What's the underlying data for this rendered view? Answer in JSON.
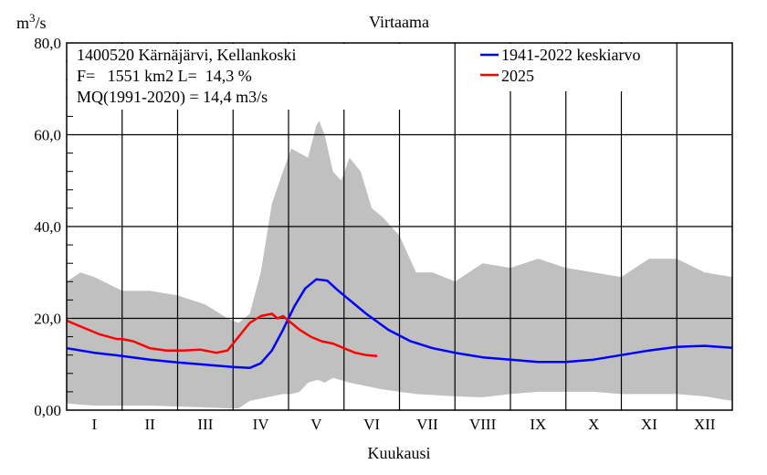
{
  "chart_data": {
    "type": "line",
    "title": "Virtaama",
    "ylabel_base": "m",
    "ylabel_sup": "3",
    "ylabel_rest": "/s",
    "xlabel": "Kuukausi",
    "ylim": [
      0,
      80
    ],
    "y_ticks": [
      "0,00",
      "20,0",
      "40,0",
      "60,0",
      "80,0"
    ],
    "x_ticks": [
      "I",
      "II",
      "III",
      "IV",
      "V",
      "VI",
      "VII",
      "VIII",
      "IX",
      "X",
      "XI",
      "XII"
    ],
    "grid": true,
    "legend_position": "top-right",
    "info_lines": [
      "1400520 Kärnäjärvi, Kellankoski",
      "F=   1551 km2 L=  14,3 %",
      "MQ(1991-2020) = 14,4 m3/s"
    ],
    "colors": {
      "band": "#c0c0c0",
      "mean": "#0000ff",
      "y2025": "#ff0000"
    },
    "band": {
      "months": [
        0,
        0.25,
        0.5,
        1,
        1.5,
        2,
        2.5,
        2.9,
        3.1,
        3.3,
        3.5,
        3.7,
        3.9,
        4.05,
        4.2,
        4.35,
        4.5,
        4.55,
        4.65,
        4.8,
        4.95,
        5.1,
        5.3,
        5.5,
        5.7,
        6.0,
        6.3,
        6.6,
        7.0,
        7.5,
        8.0,
        8.5,
        9.0,
        9.5,
        10.0,
        10.5,
        11.0,
        11.5,
        12.0
      ],
      "max": [
        28,
        30,
        29,
        26,
        26,
        25,
        23,
        20,
        19,
        21,
        30,
        45,
        52,
        57,
        56,
        55,
        62,
        63,
        60,
        52,
        50,
        55,
        52,
        44,
        42,
        38,
        30,
        30,
        28,
        32,
        31,
        33,
        31,
        30,
        29,
        33,
        33,
        30,
        29
      ],
      "min": [
        1.5,
        1.2,
        1,
        1,
        1,
        0.8,
        0.6,
        0.4,
        0.4,
        2,
        2.5,
        3,
        3.5,
        3.5,
        4,
        6,
        6.5,
        6.5,
        6,
        7,
        6.5,
        6,
        5.5,
        5,
        4.5,
        4,
        3.5,
        3.3,
        3,
        2.8,
        3.5,
        4,
        4,
        4,
        3.5,
        3.5,
        3.5,
        3,
        2
      ]
    },
    "series": [
      {
        "name": "1941-2022 keskiarvo",
        "months": [
          0,
          0.5,
          1,
          1.5,
          2,
          2.5,
          3.0,
          3.3,
          3.5,
          3.7,
          3.9,
          4.1,
          4.3,
          4.5,
          4.7,
          4.9,
          5.1,
          5.4,
          5.8,
          6.2,
          6.6,
          7.0,
          7.5,
          8.0,
          8.5,
          9.0,
          9.5,
          10.0,
          10.5,
          11.0,
          11.5,
          12.0
        ],
        "values": [
          13.5,
          12.5,
          11.8,
          11.0,
          10.4,
          9.9,
          9.4,
          9.2,
          10.2,
          13.0,
          17.5,
          22.5,
          26.5,
          28.5,
          28.2,
          26.0,
          24.0,
          21.0,
          17.5,
          15.0,
          13.5,
          12.5,
          11.5,
          11.0,
          10.5,
          10.5,
          11.0,
          12.0,
          13.0,
          13.8,
          14.0,
          13.6
        ]
      },
      {
        "name": "2025",
        "months": [
          0,
          0.3,
          0.6,
          0.9,
          1.0,
          1.2,
          1.5,
          1.8,
          2.1,
          2.4,
          2.7,
          2.9,
          3.1,
          3.3,
          3.5,
          3.7,
          3.8,
          3.9,
          4.0,
          4.2,
          4.4,
          4.6,
          4.8,
          5.0,
          5.2,
          5.4,
          5.6
        ],
        "values": [
          19.5,
          18.0,
          16.5,
          15.5,
          15.5,
          15.0,
          13.5,
          13.0,
          13.0,
          13.2,
          12.5,
          13.0,
          16.0,
          19.0,
          20.5,
          21.0,
          20.0,
          20.5,
          19.5,
          17.5,
          16.0,
          15.0,
          14.5,
          13.5,
          12.5,
          12.0,
          11.8
        ]
      }
    ]
  }
}
